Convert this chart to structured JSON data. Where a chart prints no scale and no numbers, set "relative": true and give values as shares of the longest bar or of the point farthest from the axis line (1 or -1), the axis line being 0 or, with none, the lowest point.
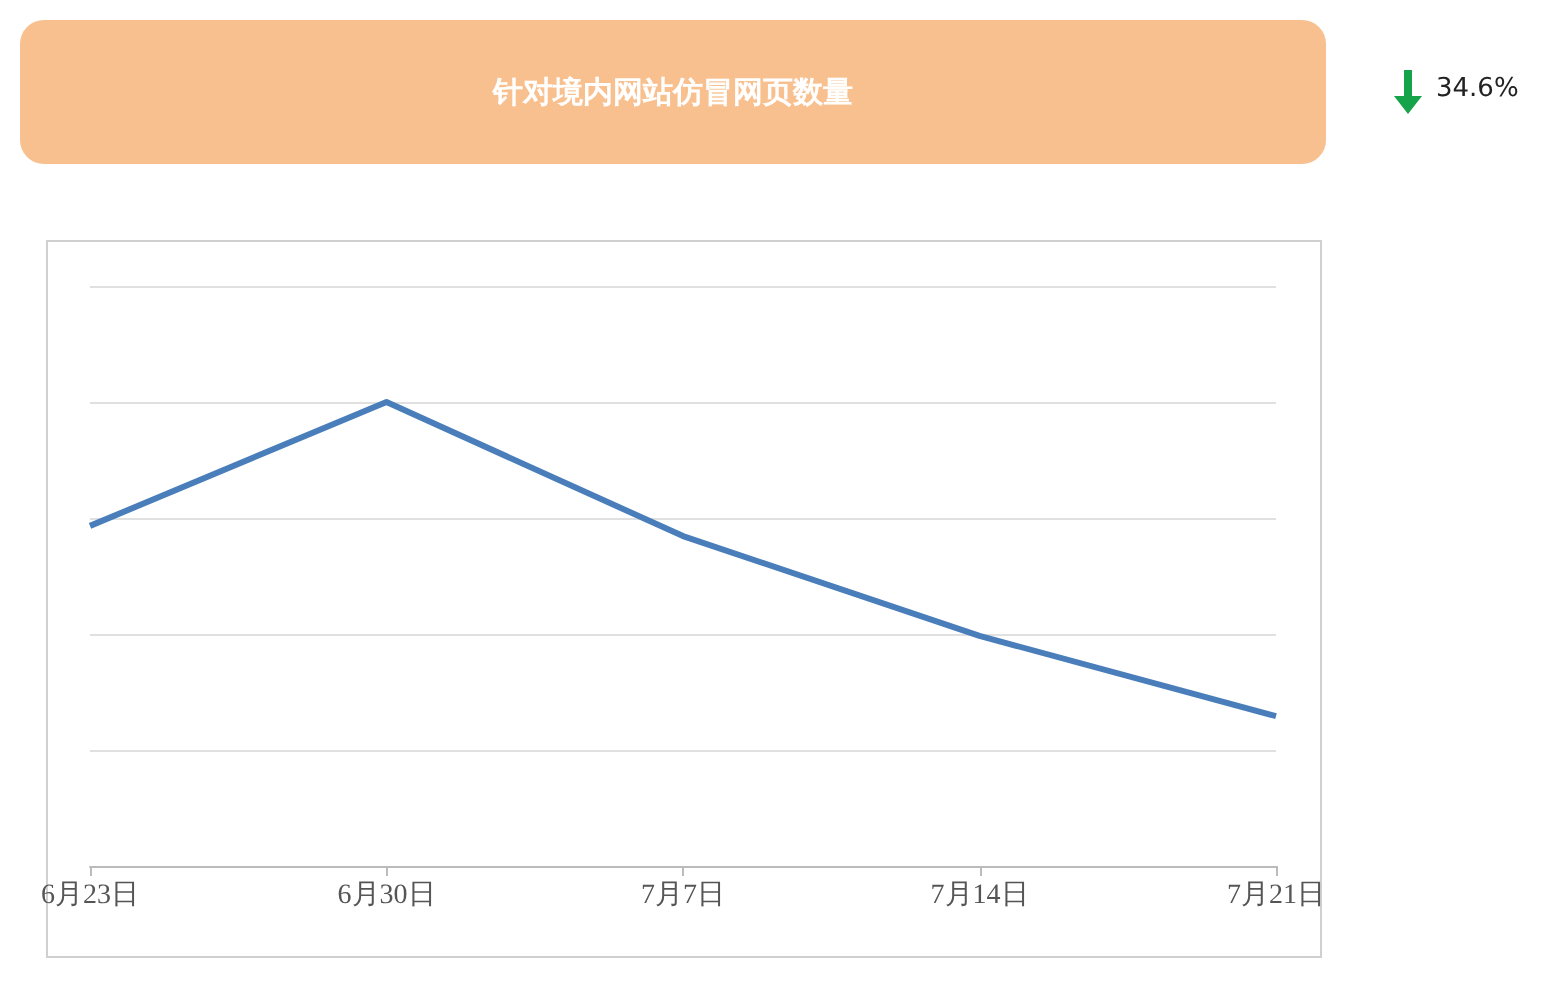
{
  "chart_data": {
    "type": "line",
    "title": "针对境内网站仿冒网页数量",
    "annotations": [
      "34.6%"
    ],
    "categories": [
      "6月23日",
      "6月30日",
      "7月7日",
      "7月14日",
      "7月21日"
    ],
    "series": [
      {
        "color": "#4a7ebb",
        "values": [
          0.733,
          1,
          0.711,
          0.496,
          0.323
        ]
      }
    ],
    "relative": true,
    "grid": "y",
    "marker": "none",
    "line_style": "solid"
  }
}
